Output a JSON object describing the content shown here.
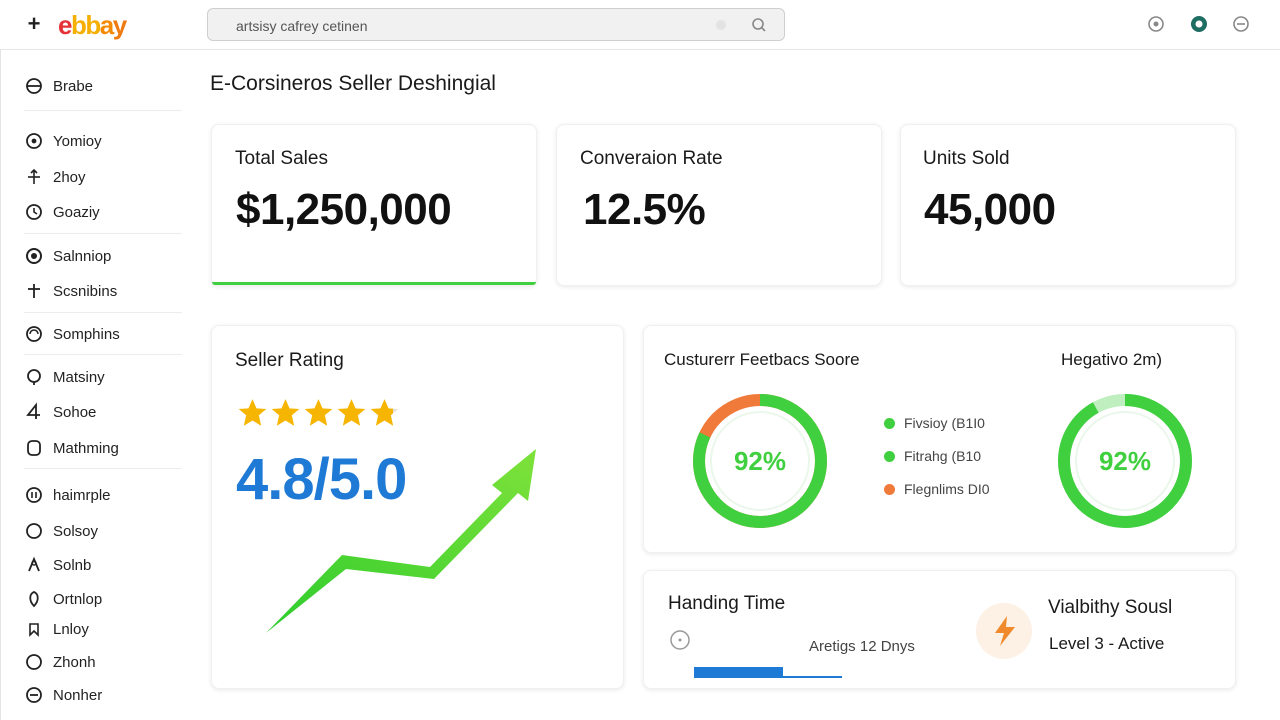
{
  "header": {
    "plus_label": "+",
    "logo_letters": [
      "e",
      "b",
      "a",
      "y"
    ],
    "search_placeholder": "artsisy cafrey cetinen"
  },
  "sidebar": {
    "items": [
      {
        "label": "Brabe",
        "icon": "globe-icon"
      },
      {
        "label": "Yomioy",
        "icon": "target-icon"
      },
      {
        "label": "2hoy",
        "icon": "arrows-icon"
      },
      {
        "label": "Goaziy",
        "icon": "clock-icon"
      },
      {
        "label": "Salnniop",
        "icon": "circle-icon"
      },
      {
        "label": "Scsnibins",
        "icon": "plus-icon"
      },
      {
        "label": "Somphins",
        "icon": "refresh-icon"
      },
      {
        "label": "Matsiny",
        "icon": "pin-icon"
      },
      {
        "label": "Sohoe",
        "icon": "number-four-icon"
      },
      {
        "label": "Mathming",
        "icon": "square-icon"
      },
      {
        "label": "haimrple",
        "icon": "chart-icon"
      },
      {
        "label": "Solsoy",
        "icon": "ring-icon"
      },
      {
        "label": "Solnb",
        "icon": "tag-icon"
      },
      {
        "label": "Ortnlop",
        "icon": "shield-icon"
      },
      {
        "label": "Lnloy",
        "icon": "bookmark-icon"
      },
      {
        "label": "Zhonh",
        "icon": "ring-icon"
      },
      {
        "label": "Nonher",
        "icon": "minus-circle-icon"
      }
    ]
  },
  "page": {
    "title": "E-Corsineros Seller Deshingial"
  },
  "kpis": [
    {
      "label": "Total Sales",
      "value": "$1,250,000"
    },
    {
      "label": "Converaion Rate",
      "value": "12.5%"
    },
    {
      "label": "Units Sold",
      "value": "45,000"
    }
  ],
  "seller_rating": {
    "title": "Seller Rating",
    "value": "4.8/5.0",
    "stars": 4.8
  },
  "feedback": {
    "title": "Custurerr Feetbacs Soore",
    "donut_value": "92%",
    "donut_fraction": 0.92,
    "legend": [
      {
        "label": "Fivsioy (B1I0",
        "color": "#3fcf3f"
      },
      {
        "label": "Fitrahg (B10",
        "color": "#3fcf3f"
      },
      {
        "label": "Flegnlims DI0",
        "color": "#f07a3a"
      }
    ],
    "secondary_title": "Hegativo 2m)",
    "secondary_donut_value": "92%",
    "secondary_fraction": 0.92
  },
  "handling": {
    "title": "Handing Time",
    "average_text": "Aretigs 12 Dnys",
    "bar_fraction": 0.3
  },
  "visibility": {
    "title": "Vialbithy Sousl",
    "status": "Level 3 - Active"
  },
  "colors": {
    "green": "#3fcf3f",
    "blue": "#1f7ad6",
    "orange": "#f07a3a",
    "star": "#f6b500"
  }
}
